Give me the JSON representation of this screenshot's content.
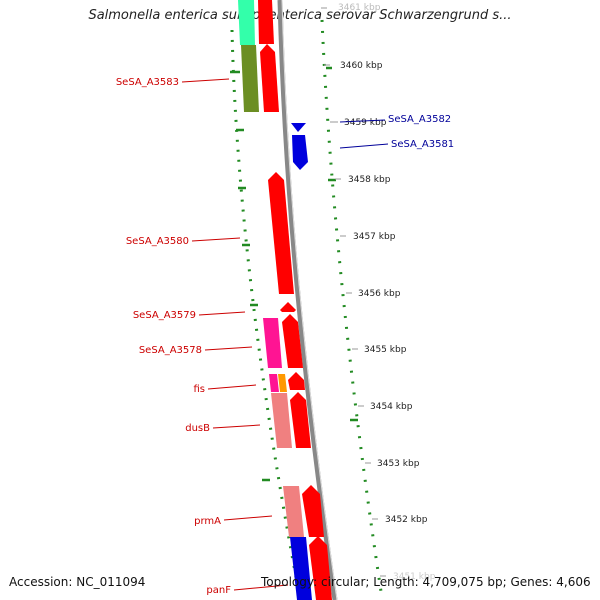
{
  "title": "Salmonella enterica subsp. enterica serovar Schwarzengrund s...",
  "footer": {
    "accession": "Accession: NC_011094",
    "topology": "Topology: circular; Length: 4,709,075 bp; Genes: 4,606"
  },
  "ticks": [
    "3461 kbp",
    "3460 kbp",
    "3459 kbp",
    "3458 kbp",
    "3457 kbp",
    "3456 kbp",
    "3455 kbp",
    "3454 kbp",
    "3453 kbp",
    "3452 kbp",
    "3451 kbp"
  ],
  "gene_labels_left": [
    "SeSA_A3583",
    "SeSA_A3580",
    "SeSA_A3579",
    "SeSA_A3578",
    "fis",
    "dusB",
    "prmA",
    "panF"
  ],
  "gene_labels_right": [
    "SeSA_A3582",
    "SeSA_A3581"
  ],
  "colors": {
    "forward_gene": "#ff0000",
    "reverse_gene": "#0000dd",
    "left_label": "#cc0000",
    "right_label": "#000099",
    "backbone": "#888888",
    "gc_ticks": "#228b22"
  }
}
